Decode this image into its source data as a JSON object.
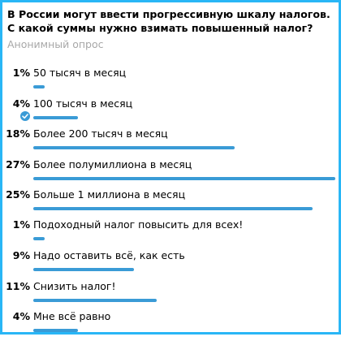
{
  "poll": {
    "question": "В России могут ввести прогрессивную шкалу налогов. С какой суммы нужно взимать повышенный налог?",
    "type_label": "Анонимный опрос",
    "accent_color": "#3a9bd6",
    "options": [
      {
        "percent_label": "1%",
        "label": "50 тысяч в месяц",
        "percent": 1,
        "voted": false
      },
      {
        "percent_label": "4%",
        "label": "100 тысяч в месяц",
        "percent": 4,
        "voted": true
      },
      {
        "percent_label": "18%",
        "label": "Более 200 тысяч в месяц",
        "percent": 18,
        "voted": false
      },
      {
        "percent_label": "27%",
        "label": "Более полумиллиона в месяц",
        "percent": 27,
        "voted": false
      },
      {
        "percent_label": "25%",
        "label": "Больше 1 миллиона в месяц",
        "percent": 25,
        "voted": false
      },
      {
        "percent_label": "1%",
        "label": "Подоходный налог повысить для всех!",
        "percent": 1,
        "voted": false
      },
      {
        "percent_label": "9%",
        "label": "Надо оставить всё, как есть",
        "percent": 9,
        "voted": false
      },
      {
        "percent_label": "11%",
        "label": "Снизить налог!",
        "percent": 11,
        "voted": false
      },
      {
        "percent_label": "4%",
        "label": "Мне всё равно",
        "percent": 4,
        "voted": false
      }
    ]
  }
}
